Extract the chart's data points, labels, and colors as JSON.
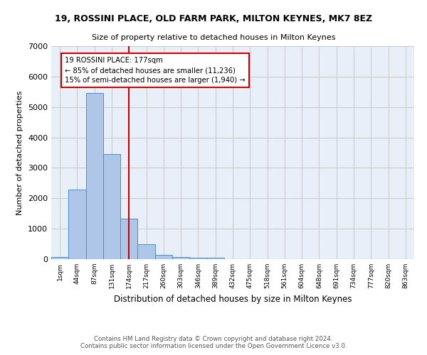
{
  "title_line1": "19, ROSSINI PLACE, OLD FARM PARK, MILTON KEYNES, MK7 8EZ",
  "title_line2": "Size of property relative to detached houses in Milton Keynes",
  "xlabel": "Distribution of detached houses by size in Milton Keynes",
  "ylabel": "Number of detached properties",
  "bin_labels": [
    "1sqm",
    "44sqm",
    "87sqm",
    "131sqm",
    "174sqm",
    "217sqm",
    "260sqm",
    "303sqm",
    "346sqm",
    "389sqm",
    "432sqm",
    "475sqm",
    "518sqm",
    "561sqm",
    "604sqm",
    "648sqm",
    "691sqm",
    "734sqm",
    "777sqm",
    "820sqm",
    "863sqm"
  ],
  "bar_values": [
    75,
    2280,
    5450,
    3450,
    1320,
    480,
    150,
    80,
    50,
    40,
    0,
    0,
    0,
    0,
    0,
    0,
    0,
    0,
    0,
    0
  ],
  "bar_color": "#aec6e8",
  "bar_edge_color": "#4a90c4",
  "vline_x": 4.0,
  "vline_color": "#cc0000",
  "annotation_text": "19 ROSSINI PLACE: 177sqm\n← 85% of detached houses are smaller (11,236)\n15% of semi-detached houses are larger (1,940) →",
  "annotation_box_color": "#cc0000",
  "ylim": [
    0,
    7000
  ],
  "yticks": [
    0,
    1000,
    2000,
    3000,
    4000,
    5000,
    6000,
    7000
  ],
  "grid_color": "#cccccc",
  "bg_color": "#e8eff8",
  "footer_line1": "Contains HM Land Registry data © Crown copyright and database right 2024.",
  "footer_line2": "Contains public sector information licensed under the Open Government Licence v3.0."
}
